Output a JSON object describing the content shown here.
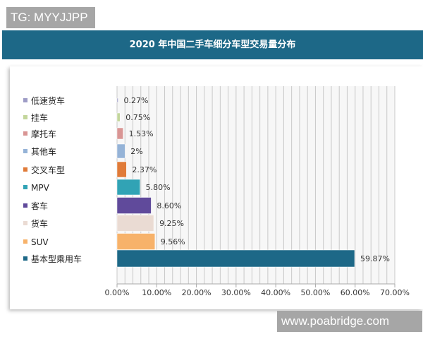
{
  "watermark_top": "TG: MYYJJPP",
  "watermark_bottom": "www.poabridge.com",
  "chart_data": {
    "type": "bar",
    "orientation": "horizontal",
    "title": "2020 年中国二手车细分车型交易量分布",
    "categories": [
      "低速货车",
      "挂车",
      "摩托车",
      "其他车",
      "交叉车型",
      "MPV",
      "客车",
      "货车",
      "SUV",
      "基本型乘用车"
    ],
    "values": [
      0.27,
      0.75,
      1.53,
      2,
      2.37,
      5.8,
      8.6,
      9.25,
      9.56,
      59.87
    ],
    "data_labels": [
      "0.27%",
      "0.75%",
      "1.53%",
      "2%",
      "2.37%",
      "5.80%",
      "8.60%",
      "9.25%",
      "9.56%",
      "59.87%"
    ],
    "colors": [
      "#9e9cc6",
      "#c3d69b",
      "#d99594",
      "#95b3d7",
      "#e07b39",
      "#31a3b5",
      "#604a9b",
      "#eadbd3",
      "#f7b26a",
      "#1d6887"
    ],
    "xlim": [
      0,
      70
    ],
    "xticks": [
      "0.00%",
      "10.00%",
      "20.00%",
      "30.00%",
      "40.00%",
      "50.00%",
      "60.00%",
      "70.00%"
    ],
    "grid": true,
    "legend": "left"
  }
}
